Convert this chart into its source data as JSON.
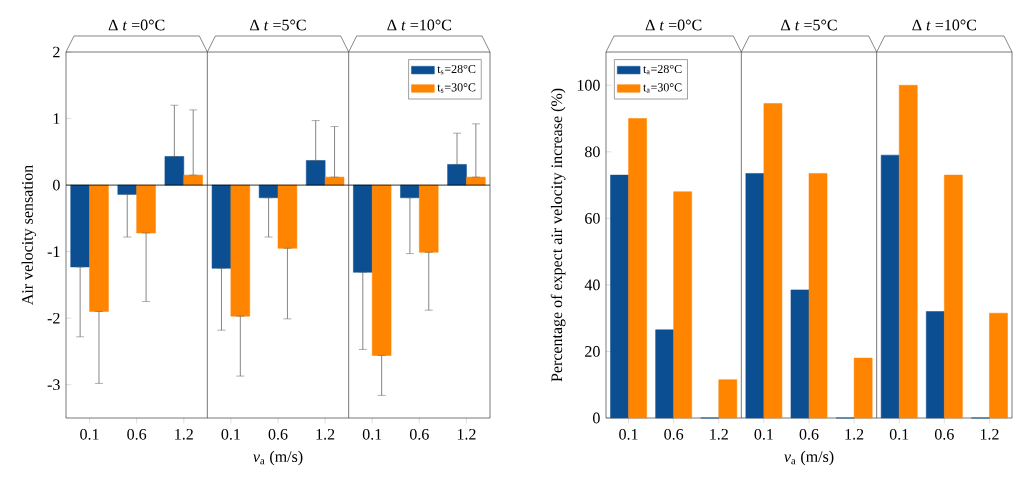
{
  "chart_data": [
    {
      "type": "bar",
      "categories": [
        "0.1",
        "0.6",
        "1.2",
        "0.1",
        "0.6",
        "1.2",
        "0.1",
        "0.6",
        "1.2"
      ],
      "xlabel": "*v*$_{a}$ (m/s)",
      "ylabel": "Air velocity sensation",
      "ylim": [
        -3.5,
        2
      ],
      "yticks": [
        -3,
        -2,
        -1,
        0,
        1,
        2
      ],
      "legend": "top right",
      "annotations": [
        "Δ *t* =0°C",
        "Δ *t* =5°C",
        "Δ *t* =10°C"
      ],
      "series": [
        {
          "name": "t$_{s}$=28°C",
          "color": "#0b4f92",
          "values": [
            -1.23,
            -0.14,
            0.43,
            -1.25,
            -0.19,
            0.37,
            -1.31,
            -0.19,
            0.31
          ],
          "errors": [
            [
              -2.28,
              -1.23
            ],
            [
              -0.78,
              -0.14
            ],
            [
              0.43,
              1.2
            ],
            [
              -2.18,
              -1.25
            ],
            [
              -0.78,
              -0.19
            ],
            [
              0.37,
              0.97
            ],
            [
              -2.47,
              -1.31
            ],
            [
              -1.03,
              -0.19
            ],
            [
              0.31,
              0.78
            ]
          ]
        },
        {
          "name": "t$_{s}$=30°C",
          "color": "#ff8400",
          "values": [
            -1.9,
            -0.72,
            0.15,
            -1.97,
            -0.95,
            0.12,
            -2.56,
            -1.01,
            0.12
          ],
          "errors": [
            [
              -2.98,
              -1.9
            ],
            [
              -1.75,
              -0.72
            ],
            [
              0.15,
              1.13
            ],
            [
              -2.87,
              -1.97
            ],
            [
              -2.01,
              -0.95
            ],
            [
              0.12,
              0.88
            ],
            [
              -3.16,
              -2.56
            ],
            [
              -1.88,
              -1.01
            ],
            [
              0.12,
              0.92
            ]
          ]
        }
      ]
    },
    {
      "type": "bar",
      "categories": [
        "0.1",
        "0.6",
        "1.2",
        "0.1",
        "0.6",
        "1.2",
        "0.1",
        "0.6",
        "1.2"
      ],
      "xlabel": "*v*$_{a}$ (m/s)",
      "ylabel": "Percentage of expect air velocity increase (%)",
      "ylim": [
        0,
        110
      ],
      "yticks": [
        0,
        20,
        40,
        60,
        80,
        100
      ],
      "legend": "top left",
      "annotations": [
        "Δ *t* =0°C",
        "Δ *t* =5°C",
        "Δ *t* =10°C"
      ],
      "series": [
        {
          "name": "t$_{a}$=28°C",
          "color": "#0b4f92",
          "values": [
            73,
            26.5,
            0,
            73.5,
            38.5,
            0,
            79,
            32,
            0
          ]
        },
        {
          "name": "t$_{a}$=30°C",
          "color": "#ff8400",
          "values": [
            90,
            68,
            11.5,
            94.5,
            73.5,
            18,
            100,
            73,
            31.5
          ]
        }
      ]
    }
  ]
}
